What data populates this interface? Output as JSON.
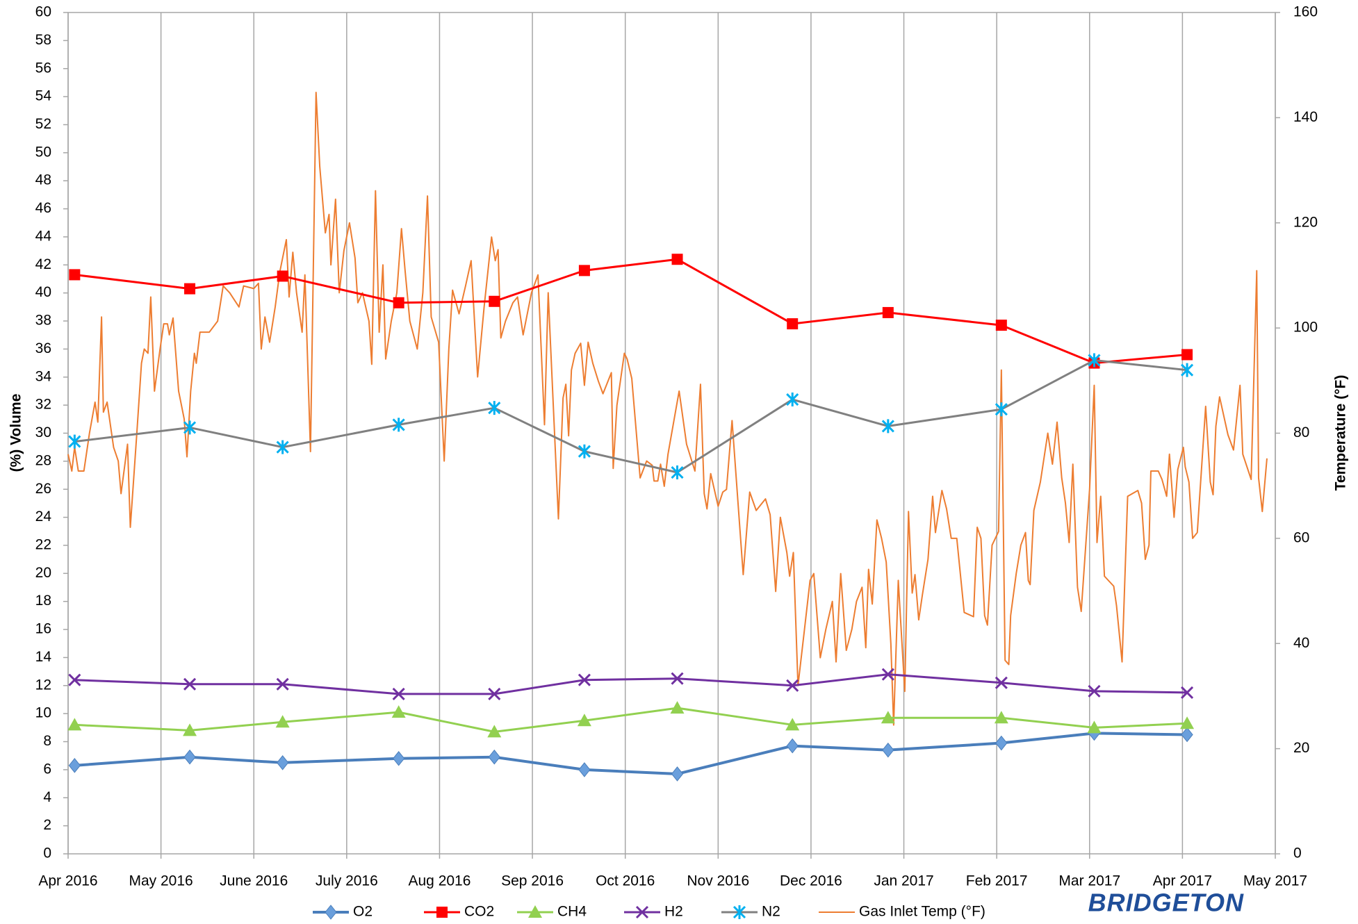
{
  "chart_data": {
    "type": "line",
    "y_axis_label": "(%) Volume",
    "y2_axis_label": "Temperature (°F)",
    "logo": "BRIDGETON",
    "xlim": [
      0,
      13
    ],
    "xticks": [
      {
        "value": 0,
        "label": "Apr 2016"
      },
      {
        "value": 1,
        "label": "May 2016"
      },
      {
        "value": 2,
        "label": "June 2016"
      },
      {
        "value": 3,
        "label": "July 2016"
      },
      {
        "value": 4,
        "label": "Aug 2016"
      },
      {
        "value": 5,
        "label": "Sep 2016"
      },
      {
        "value": 6,
        "label": "Oct 2016"
      },
      {
        "value": 7,
        "label": "Nov 2016"
      },
      {
        "value": 8,
        "label": "Dec 2016"
      },
      {
        "value": 9,
        "label": "Jan 2017"
      },
      {
        "value": 10,
        "label": "Feb 2017"
      },
      {
        "value": 11,
        "label": "Mar 2017"
      },
      {
        "value": 12,
        "label": "Apr 2017"
      },
      {
        "value": 13,
        "label": "May 2017"
      }
    ],
    "ylim": [
      0,
      60
    ],
    "yticks": [
      0,
      2,
      4,
      6,
      8,
      10,
      12,
      14,
      16,
      18,
      20,
      22,
      24,
      26,
      28,
      30,
      32,
      34,
      36,
      38,
      40,
      42,
      44,
      46,
      48,
      50,
      52,
      54,
      56,
      58,
      60
    ],
    "y2lim": [
      0,
      160
    ],
    "y2ticks": [
      0,
      20,
      40,
      60,
      80,
      100,
      120,
      140,
      160
    ],
    "grid": "x",
    "legend": "bottom",
    "series": [
      {
        "name": "O2",
        "color": "#4a7ebb",
        "marker": "diamond",
        "marker_color": "#6a9fdc",
        "line_width": 4,
        "x": [
          0.07,
          1.31,
          2.31,
          3.56,
          4.59,
          5.56,
          6.56,
          7.8,
          8.83,
          10.05,
          11.05,
          12.05
        ],
        "values": [
          6.3,
          6.9,
          6.5,
          6.8,
          6.9,
          6.0,
          5.7,
          7.7,
          7.4,
          7.9,
          8.6,
          8.5
        ]
      },
      {
        "name": "CO2",
        "color": "#ff0000",
        "marker": "square",
        "marker_color": "#ff0000",
        "line_width": 3,
        "x": [
          0.07,
          1.31,
          2.31,
          3.56,
          4.59,
          5.56,
          6.56,
          7.8,
          8.83,
          10.05,
          11.05,
          12.05
        ],
        "values": [
          41.3,
          40.3,
          41.2,
          39.3,
          39.4,
          41.6,
          42.4,
          37.8,
          38.6,
          37.7,
          35.0,
          35.6
        ]
      },
      {
        "name": "CH4",
        "color": "#92d050",
        "marker": "triangle",
        "marker_color": "#92d050",
        "line_width": 3,
        "x": [
          0.07,
          1.31,
          2.31,
          3.56,
          4.59,
          5.56,
          6.56,
          7.8,
          8.83,
          10.05,
          11.05,
          12.05
        ],
        "values": [
          9.2,
          8.8,
          9.4,
          10.1,
          8.7,
          9.5,
          10.4,
          9.2,
          9.7,
          9.7,
          9.0,
          9.3
        ]
      },
      {
        "name": "H2",
        "color": "#7030a0",
        "marker": "x",
        "marker_color": "#7030a0",
        "line_width": 3,
        "x": [
          0.07,
          1.31,
          2.31,
          3.56,
          4.59,
          5.56,
          6.56,
          7.8,
          8.83,
          10.05,
          11.05,
          12.05
        ],
        "values": [
          12.4,
          12.1,
          12.1,
          11.4,
          11.4,
          12.4,
          12.5,
          12.0,
          12.8,
          12.2,
          11.6,
          11.5
        ]
      },
      {
        "name": "N2",
        "color": "#808080",
        "marker": "asterisk",
        "marker_color": "#00b0f0",
        "line_width": 3,
        "x": [
          0.07,
          1.31,
          2.31,
          3.56,
          4.59,
          5.56,
          6.56,
          7.8,
          8.83,
          10.05,
          11.05,
          12.05
        ],
        "values": [
          29.4,
          30.4,
          29.0,
          30.6,
          31.8,
          28.7,
          27.2,
          32.4,
          30.5,
          31.7,
          35.2,
          34.5
        ]
      },
      {
        "name": "Gas Inlet Temp (°F)",
        "color": "#ed7d31",
        "marker": "none",
        "line_width": 2,
        "axis": "y2",
        "x": [
          0.0,
          0.04,
          0.07,
          0.11,
          0.17,
          0.23,
          0.29,
          0.32,
          0.36,
          0.38,
          0.42,
          0.49,
          0.54,
          0.57,
          0.64,
          0.67,
          0.74,
          0.79,
          0.82,
          0.86,
          0.89,
          0.93,
          0.99,
          1.03,
          1.07,
          1.09,
          1.13,
          1.19,
          1.25,
          1.28,
          1.32,
          1.36,
          1.38,
          1.42,
          1.52,
          1.61,
          1.67,
          1.74,
          1.84,
          1.89,
          2.0,
          2.05,
          2.08,
          2.12,
          2.17,
          2.23,
          2.28,
          2.35,
          2.38,
          2.42,
          2.46,
          2.52,
          2.55,
          2.61,
          2.67,
          2.71,
          2.77,
          2.81,
          2.83,
          2.88,
          2.92,
          2.97,
          3.03,
          3.09,
          3.12,
          3.17,
          3.24,
          3.27,
          3.31,
          3.35,
          3.39,
          3.42,
          3.48,
          3.54,
          3.59,
          3.63,
          3.68,
          3.76,
          3.82,
          3.87,
          3.91,
          3.99,
          4.05,
          4.1,
          4.14,
          4.21,
          4.28,
          4.34,
          4.41,
          4.48,
          4.56,
          4.6,
          4.63,
          4.66,
          4.71,
          4.79,
          4.84,
          4.9,
          4.99,
          5.06,
          5.13,
          5.17,
          5.28,
          5.33,
          5.36,
          5.39,
          5.42,
          5.46,
          5.52,
          5.56,
          5.6,
          5.65,
          5.71,
          5.76,
          5.85,
          5.87,
          5.91,
          5.99,
          6.02,
          6.07,
          6.16,
          6.23,
          6.29,
          6.31,
          6.35,
          6.38,
          6.42,
          6.46,
          6.54,
          6.58,
          6.66,
          6.75,
          6.81,
          6.85,
          6.88,
          6.92,
          7.0,
          7.05,
          7.09,
          7.15,
          7.27,
          7.34,
          7.41,
          7.51,
          7.56,
          7.62,
          7.67,
          7.74,
          7.77,
          7.81,
          7.86,
          7.93,
          7.99,
          8.03,
          8.1,
          8.16,
          8.23,
          8.27,
          8.32,
          8.38,
          8.44,
          8.49,
          8.55,
          8.59,
          8.62,
          8.66,
          8.71,
          8.76,
          8.81,
          8.86,
          8.89,
          8.94,
          9.01,
          9.05,
          9.09,
          9.12,
          9.16,
          9.2,
          9.26,
          9.31,
          9.34,
          9.41,
          9.46,
          9.51,
          9.57,
          9.65,
          9.75,
          9.79,
          9.83,
          9.87,
          9.9,
          9.95,
          10.02,
          10.05,
          10.09,
          10.13,
          10.15,
          10.21,
          10.26,
          10.31,
          10.34,
          10.36,
          10.4,
          10.47,
          10.55,
          10.6,
          10.65,
          10.7,
          10.74,
          10.78,
          10.82,
          10.87,
          10.91,
          11.0,
          11.05,
          11.08,
          11.12,
          11.16,
          11.26,
          11.29,
          11.35,
          11.41,
          11.52,
          11.56,
          11.6,
          11.64,
          11.66,
          11.74,
          11.78,
          11.83,
          11.86,
          11.91,
          11.95,
          12.01,
          12.03,
          12.07,
          12.11,
          12.16,
          12.25,
          12.3,
          12.33,
          12.36,
          12.4,
          12.49,
          12.55,
          12.62,
          12.65,
          12.74,
          12.8,
          12.82,
          12.86,
          12.91
        ],
        "values": [
          76.0,
          72.8,
          77.3,
          72.8,
          72.8,
          80.0,
          85.9,
          82.1,
          102.1,
          84.0,
          85.9,
          77.3,
          74.7,
          68.5,
          77.9,
          62.1,
          80.0,
          93.3,
          96.0,
          95.2,
          105.9,
          88.0,
          96.0,
          100.8,
          100.8,
          98.7,
          101.9,
          88.0,
          82.7,
          75.5,
          88.0,
          95.2,
          93.3,
          99.2,
          99.2,
          101.3,
          108.0,
          106.7,
          104.0,
          108.0,
          107.5,
          108.5,
          96.0,
          102.1,
          97.3,
          104.0,
          110.7,
          116.8,
          105.9,
          114.4,
          106.7,
          99.2,
          110.1,
          76.5,
          144.8,
          130.7,
          118.1,
          121.6,
          112.0,
          124.5,
          106.7,
          114.7,
          120.0,
          113.3,
          104.8,
          106.7,
          101.3,
          93.1,
          126.1,
          99.2,
          112.0,
          94.1,
          101.3,
          106.7,
          118.9,
          110.7,
          101.3,
          96.0,
          106.7,
          125.1,
          102.1,
          97.3,
          74.7,
          96.0,
          107.2,
          102.7,
          108.0,
          112.8,
          90.7,
          104.0,
          117.3,
          112.8,
          114.9,
          98.1,
          101.3,
          104.8,
          105.9,
          98.7,
          106.7,
          110.1,
          81.6,
          106.7,
          63.7,
          86.7,
          89.3,
          79.5,
          92.0,
          95.2,
          97.1,
          89.1,
          97.3,
          93.3,
          89.9,
          87.5,
          91.5,
          73.3,
          85.3,
          95.2,
          94.1,
          90.4,
          71.5,
          74.7,
          73.9,
          70.9,
          70.9,
          74.1,
          69.9,
          76.0,
          84.0,
          88.0,
          77.9,
          72.8,
          89.3,
          68.5,
          65.6,
          72.3,
          66.1,
          68.8,
          69.3,
          82.4,
          53.1,
          68.8,
          65.3,
          67.5,
          64.5,
          49.9,
          64.0,
          57.3,
          52.8,
          57.3,
          32.0,
          42.7,
          52.0,
          53.3,
          37.3,
          42.7,
          48.0,
          36.5,
          53.3,
          38.7,
          42.7,
          48.0,
          50.7,
          39.2,
          54.1,
          47.5,
          63.5,
          60.0,
          55.5,
          40.0,
          24.5,
          52.0,
          30.9,
          65.1,
          49.6,
          53.1,
          44.5,
          49.3,
          56.0,
          68.0,
          61.1,
          69.1,
          65.6,
          60.0,
          60.0,
          45.9,
          45.1,
          62.1,
          60.0,
          45.3,
          43.5,
          58.7,
          61.3,
          92.0,
          36.8,
          36.0,
          45.3,
          53.3,
          58.7,
          61.1,
          52.0,
          51.2,
          65.3,
          70.7,
          80.0,
          74.1,
          82.1,
          71.5,
          66.7,
          59.2,
          74.1,
          50.7,
          46.1,
          69.3,
          89.1,
          59.2,
          68.0,
          52.8,
          50.9,
          47.2,
          36.5,
          68.0,
          69.1,
          66.7,
          56.0,
          58.7,
          72.8,
          72.8,
          71.2,
          68.0,
          76.0,
          64.0,
          73.1,
          77.3,
          73.6,
          70.7,
          60.0,
          61.1,
          85.1,
          70.7,
          68.3,
          81.3,
          86.9,
          79.7,
          76.8,
          89.1,
          76.0,
          71.2,
          110.9,
          71.5,
          65.1,
          75.2
        ]
      }
    ]
  }
}
